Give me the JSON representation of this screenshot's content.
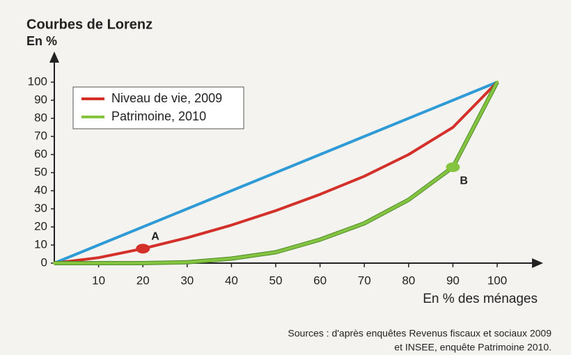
{
  "chart_data": {
    "type": "line",
    "title": "Courbes de Lorenz",
    "ylabel": "En %",
    "xlabel": "En % des ménages",
    "source": [
      "Sources : d'après  enquêtes Revenus fiscaux et sociaux 2009",
      "et INSEE, enquête Patrimoine 2010."
    ],
    "x": [
      0,
      10,
      20,
      30,
      40,
      50,
      60,
      70,
      80,
      90,
      100
    ],
    "series": [
      {
        "name": "Niveau de vie, 2009",
        "color": "#d4302a",
        "values": [
          0,
          3,
          8,
          14,
          21,
          29,
          38,
          48,
          60,
          75,
          100
        ]
      },
      {
        "name": "Patrimoine, 2010",
        "color": "#84c441",
        "values": [
          0,
          0,
          0,
          0.5,
          2.5,
          6,
          13,
          22,
          35,
          53,
          100
        ]
      }
    ],
    "equality_line": {
      "color": "#2e9bd6",
      "x": [
        0,
        100
      ],
      "values": [
        0,
        100
      ]
    },
    "points": [
      {
        "label": "A",
        "x": 20,
        "y": 8,
        "color": "#d4302a"
      },
      {
        "label": "B",
        "x": 90,
        "y": 53,
        "color": "#84c441"
      }
    ],
    "xlim": [
      0,
      100
    ],
    "ylim": [
      0,
      100
    ],
    "xticks": [
      10,
      20,
      30,
      40,
      50,
      60,
      70,
      80,
      90,
      100
    ],
    "yticks": [
      0,
      10,
      20,
      30,
      40,
      50,
      60,
      70,
      80,
      90,
      100
    ],
    "legend": "upper left"
  }
}
